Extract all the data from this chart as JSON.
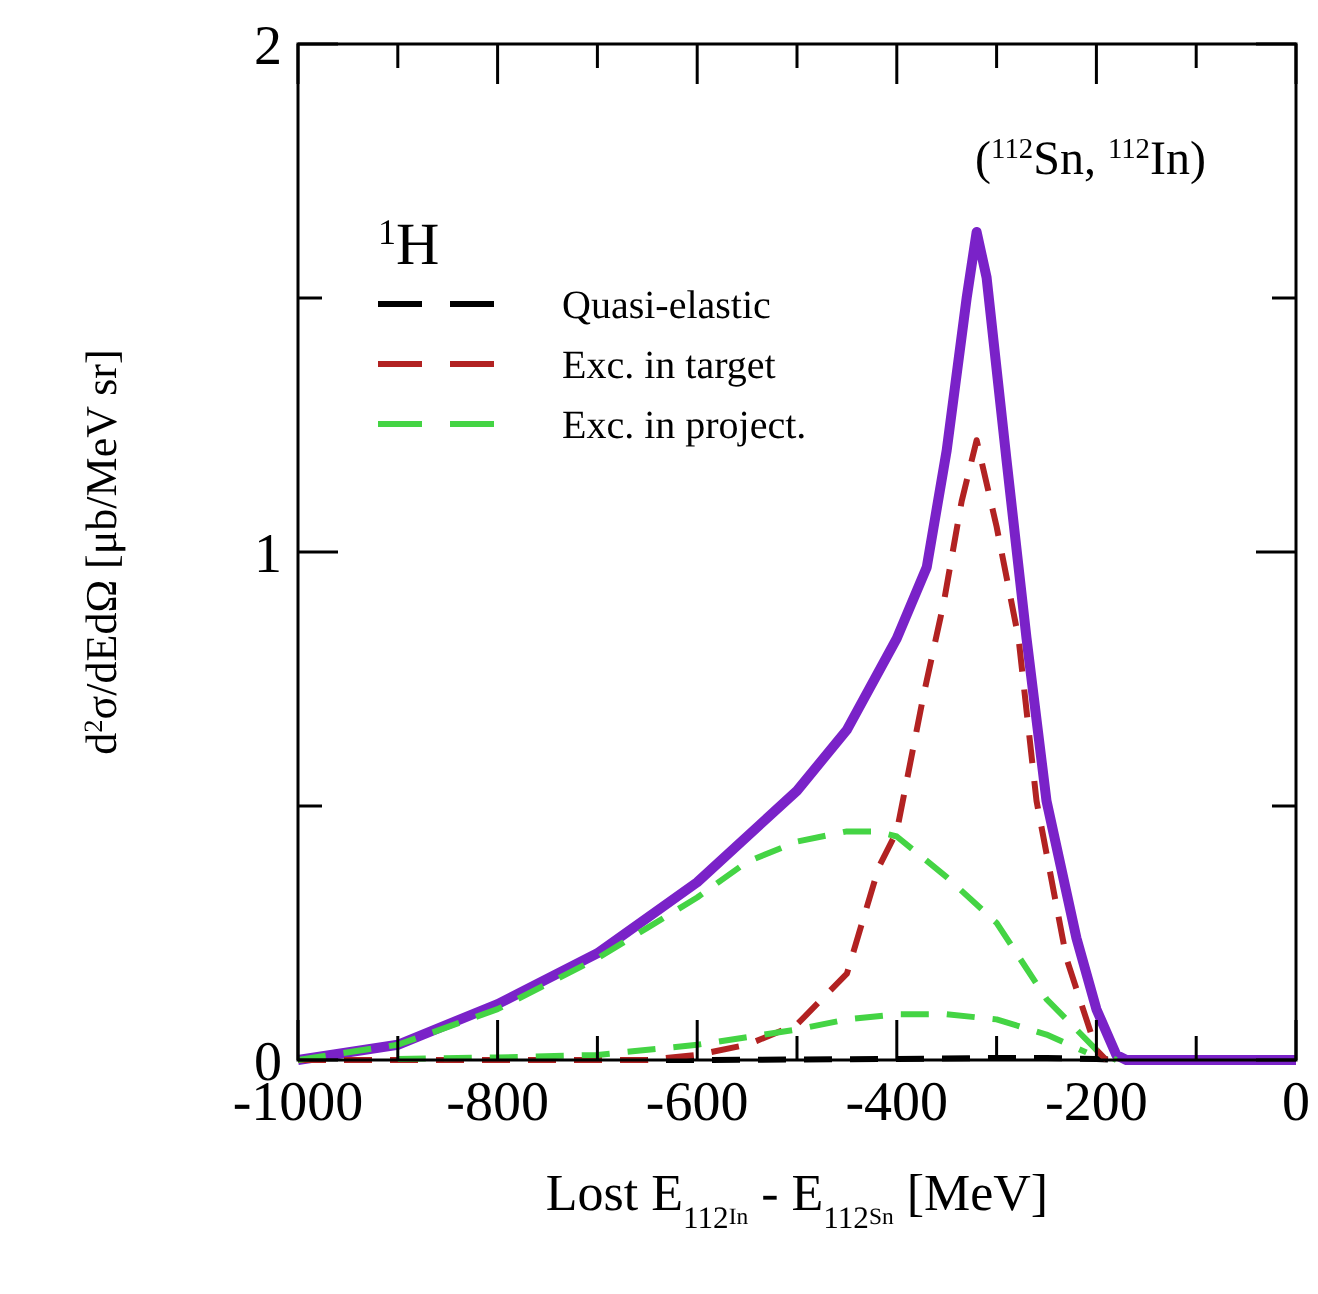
{
  "chart_data": {
    "type": "line",
    "xlabel": "Lost E$_{112}$$_{In}$ - E$_{112}$$_{Sn}$ [MeV]",
    "ylabel": "d$^{2}$σ/dEdΩ [μb/MeV sr]",
    "annotations": [
      "$^{1}$H",
      "($^{112}$Sn, $^{112}$In)"
    ],
    "xlim": [
      -1000,
      0
    ],
    "ylim": [
      0,
      2
    ],
    "xticks": [
      -1000,
      {
        "value": -900,
        "label": null
      },
      -800,
      {
        "value": -700,
        "label": null
      },
      -600,
      {
        "value": -500,
        "label": null
      },
      -400,
      {
        "value": -300,
        "label": null
      },
      -200,
      {
        "value": -100,
        "label": null
      },
      0
    ],
    "yticks": [
      0,
      {
        "value": 0.5,
        "label": null
      },
      1,
      {
        "value": 1.5,
        "label": null
      },
      2
    ],
    "legend": "top left",
    "grid": false,
    "series": [
      {
        "color": "#7a22c8",
        "line_style": "solid",
        "x": [
          -1000,
          -900,
          -800,
          -700,
          -600,
          -500,
          -450,
          -400,
          -370,
          -350,
          -330,
          -320,
          -310,
          -290,
          -270,
          -250,
          -220,
          -200,
          -180,
          -170,
          0
        ],
        "values": [
          0,
          0.03,
          0.11,
          0.21,
          0.35,
          0.53,
          0.65,
          0.83,
          0.97,
          1.2,
          1.5,
          1.63,
          1.54,
          1.18,
          0.83,
          0.51,
          0.24,
          0.1,
          0.01,
          0,
          0
        ]
      },
      {
        "name": "Quasi-elastic",
        "color": "#000000",
        "line_style": "dashed",
        "x": [
          -1000,
          -600,
          -400,
          -300,
          -250,
          -200,
          -180
        ],
        "values": [
          0,
          0,
          0.002,
          0.004,
          0.004,
          0.002,
          0
        ]
      },
      {
        "name": "Exc. in target",
        "color": "#b22222",
        "line_style": "dashed",
        "x": [
          -1000,
          -650,
          -600,
          -550,
          -500,
          -450,
          -418,
          -400,
          -373,
          -353,
          -335,
          -320,
          -300,
          -278,
          -260,
          -230,
          -200,
          -190
        ],
        "values": [
          0,
          0,
          0.01,
          0.03,
          0.07,
          0.17,
          0.38,
          0.45,
          0.72,
          0.9,
          1.1,
          1.22,
          1.05,
          0.83,
          0.51,
          0.2,
          0.02,
          0
        ]
      },
      {
        "name": "Exc. in project.",
        "color": "#44d444",
        "line_style": "dashed",
        "x": [
          -1000,
          -900,
          -800,
          -700,
          -650,
          -600,
          -550,
          -500,
          -450,
          -420,
          -400,
          -350,
          -300,
          -250,
          -200,
          -180
        ],
        "values": [
          0,
          0.03,
          0.1,
          0.2,
          0.26,
          0.32,
          0.39,
          0.43,
          0.45,
          0.45,
          0.44,
          0.36,
          0.27,
          0.12,
          0.02,
          0
        ]
      },
      {
        "color": "#44d444",
        "line_style": "dashed",
        "x": [
          -900,
          -800,
          -700,
          -600,
          -500,
          -450,
          -400,
          -350,
          -300,
          -250,
          -210
        ],
        "values": [
          0.002,
          0.005,
          0.01,
          0.03,
          0.06,
          0.08,
          0.09,
          0.09,
          0.08,
          0.05,
          0.015
        ]
      }
    ]
  }
}
